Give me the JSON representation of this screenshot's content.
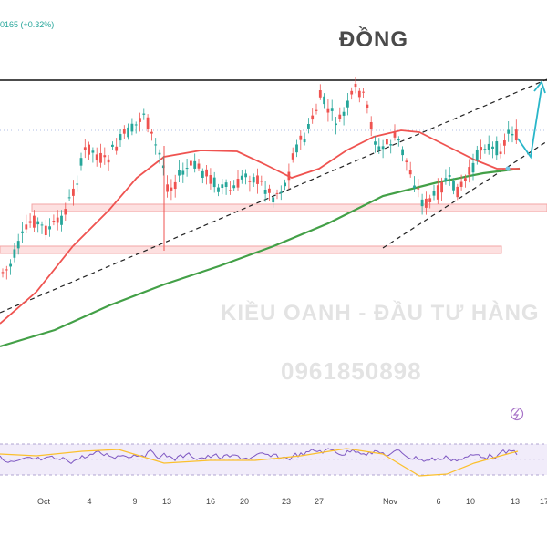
{
  "ticker_text": "0165 (+0.32%)",
  "title": "ĐỒNG",
  "watermark_line1": "KIỀU OANH - ĐẦU TƯ HÀNG H",
  "watermark_line2": "0961850898",
  "colors": {
    "bull": "#26a69a",
    "bear": "#ef5350",
    "ma_short": "#ef5350",
    "ma_long": "#43a047",
    "rsi": "#7e57c2",
    "rsi_ma": "#fbc02d",
    "zone_fill": "#fde0e0",
    "zone_border": "#f3a6a6",
    "projection": "#29b6c9"
  },
  "chart_data": [
    {
      "type": "candlestick",
      "title": "",
      "x_labels": [
        "Oct",
        "4",
        "9",
        "13",
        "16",
        "20",
        "23",
        "27",
        "Nov",
        "6",
        "10",
        "13",
        "17"
      ],
      "overlays": [
        "moving-average-short",
        "moving-average-long",
        "resistance-line",
        "support-trendlines",
        "support-zones",
        "projection-arrow"
      ],
      "grid": false
    },
    {
      "type": "line",
      "title": "",
      "series": [
        {
          "values": []
        },
        {
          "values": []
        }
      ],
      "band": "dashed-overbought-oversold"
    }
  ]
}
